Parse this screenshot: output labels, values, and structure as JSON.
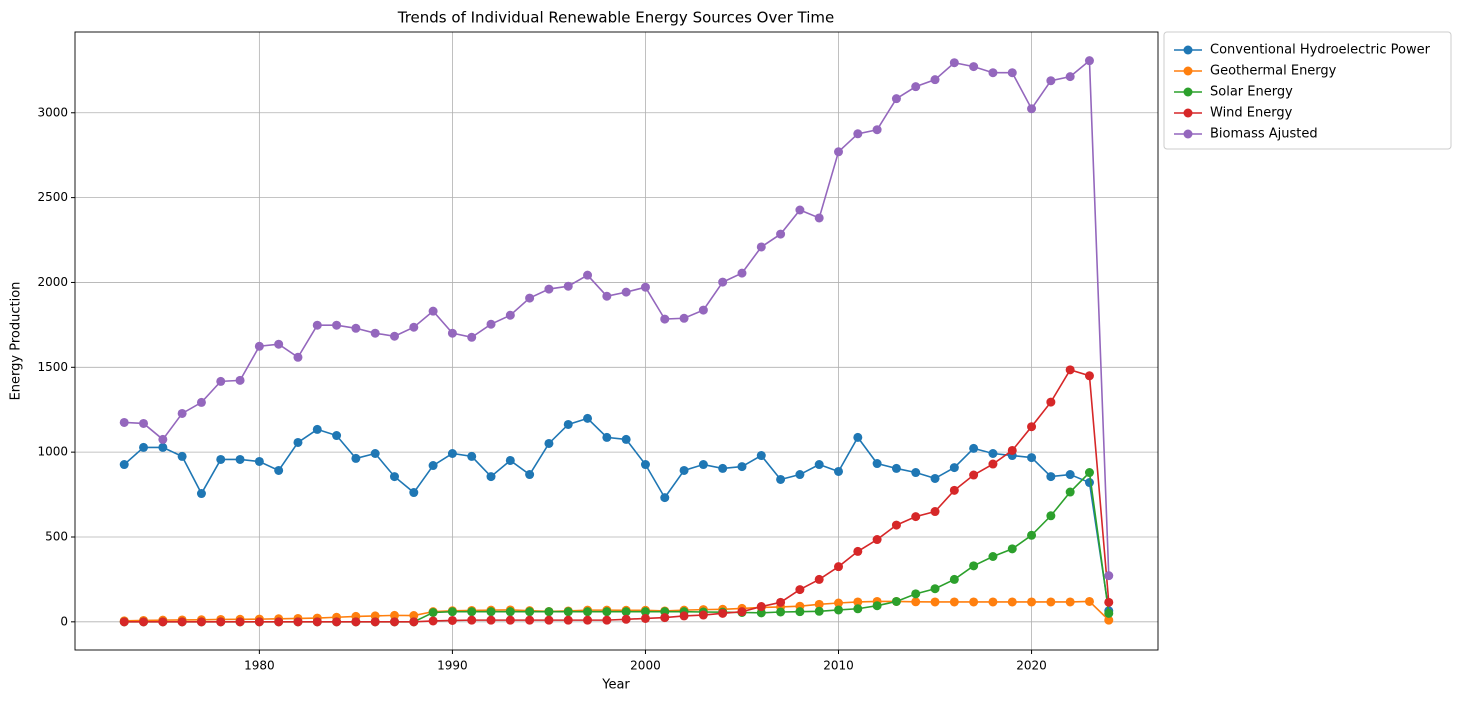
{
  "chart_data": {
    "type": "line",
    "title": "Trends of Individual Renewable Energy Sources Over Time",
    "x_label": "Year",
    "y_label": "Energy Production",
    "x": [
      1973,
      1974,
      1975,
      1976,
      1977,
      1978,
      1979,
      1980,
      1981,
      1982,
      1983,
      1984,
      1985,
      1986,
      1987,
      1988,
      1989,
      1990,
      1991,
      1992,
      1993,
      1994,
      1995,
      1996,
      1997,
      1998,
      1999,
      2000,
      2001,
      2002,
      2003,
      2004,
      2005,
      2006,
      2007,
      2008,
      2009,
      2010,
      2011,
      2012,
      2013,
      2014,
      2015,
      2016,
      2017,
      2018,
      2019,
      2020,
      2021,
      2022,
      2023,
      2024
    ],
    "series": [
      {
        "name": "Conventional Hydroelectric Power",
        "color": "#1f77b4",
        "values": [
          927,
          1028,
          1028,
          975,
          756,
          957,
          957,
          945,
          892,
          1057,
          1134,
          1098,
          963,
          992,
          856,
          762,
          921,
          992,
          975,
          856,
          951,
          868,
          1051,
          1163,
          1199,
          1087,
          1075,
          927,
          732,
          892,
          927,
          904,
          915,
          980,
          839,
          868,
          927,
          886,
          1087,
          933,
          904,
          880,
          845,
          909,
          1022,
          992,
          980,
          968,
          856,
          868,
          821,
          65
        ]
      },
      {
        "name": "Geothermal Energy",
        "color": "#ff7f0e",
        "values": [
          6,
          8,
          10,
          11,
          12,
          14,
          15,
          16,
          18,
          20,
          22,
          27,
          32,
          35,
          38,
          37,
          60,
          65,
          67,
          69,
          70,
          66,
          61,
          64,
          69,
          69,
          68,
          68,
          64,
          69,
          72,
          74,
          79,
          85,
          88,
          92,
          103,
          111,
          117,
          120,
          120,
          118,
          117,
          117,
          117,
          117,
          117,
          117,
          117,
          117,
          120,
          10
        ]
      },
      {
        "name": "Solar Energy",
        "color": "#2ca02c",
        "values": [
          0,
          0,
          0,
          0,
          0,
          0,
          0,
          0,
          0,
          0,
          0,
          0,
          0,
          0,
          0,
          0,
          55,
          60,
          60,
          60,
          60,
          60,
          60,
          60,
          60,
          60,
          60,
          60,
          60,
          60,
          58,
          57,
          55,
          53,
          58,
          60,
          62,
          70,
          77,
          95,
          120,
          165,
          195,
          250,
          330,
          385,
          430,
          510,
          625,
          765,
          880,
          50
        ]
      },
      {
        "name": "Wind Energy",
        "color": "#d62728",
        "values": [
          0,
          0,
          0,
          0,
          0,
          0,
          0,
          0,
          0,
          0,
          0,
          0,
          0,
          0,
          0,
          0,
          5,
          8,
          10,
          10,
          10,
          10,
          10,
          10,
          10,
          10,
          15,
          20,
          25,
          35,
          40,
          50,
          60,
          90,
          115,
          190,
          250,
          325,
          415,
          485,
          570,
          620,
          650,
          775,
          865,
          930,
          1010,
          1150,
          1295,
          1485,
          1450,
          115
        ]
      },
      {
        "name": "Biomass Ajusted",
        "color": "#9467bd",
        "values": [
          1175,
          1169,
          1075,
          1228,
          1293,
          1417,
          1423,
          1624,
          1636,
          1559,
          1748,
          1748,
          1730,
          1701,
          1683,
          1736,
          1831,
          1701,
          1677,
          1754,
          1807,
          1908,
          1961,
          1978,
          2043,
          1919,
          1943,
          1972,
          1784,
          1789,
          1837,
          2002,
          2055,
          2209,
          2285,
          2427,
          2380,
          2770,
          2876,
          2900,
          3083,
          3154,
          3195,
          3295,
          3272,
          3236,
          3236,
          3024,
          3189,
          3213,
          3307,
          272
        ]
      }
    ],
    "xlim": [
      1970.45,
      2026.55
    ],
    "xticks": [
      1980,
      1990,
      2000,
      2010,
      2020
    ],
    "ylim": [
      -166,
      3476
    ],
    "yticks": [
      0,
      500,
      1000,
      1500,
      2000,
      2500,
      3000
    ],
    "grid": true,
    "legend": "right"
  }
}
